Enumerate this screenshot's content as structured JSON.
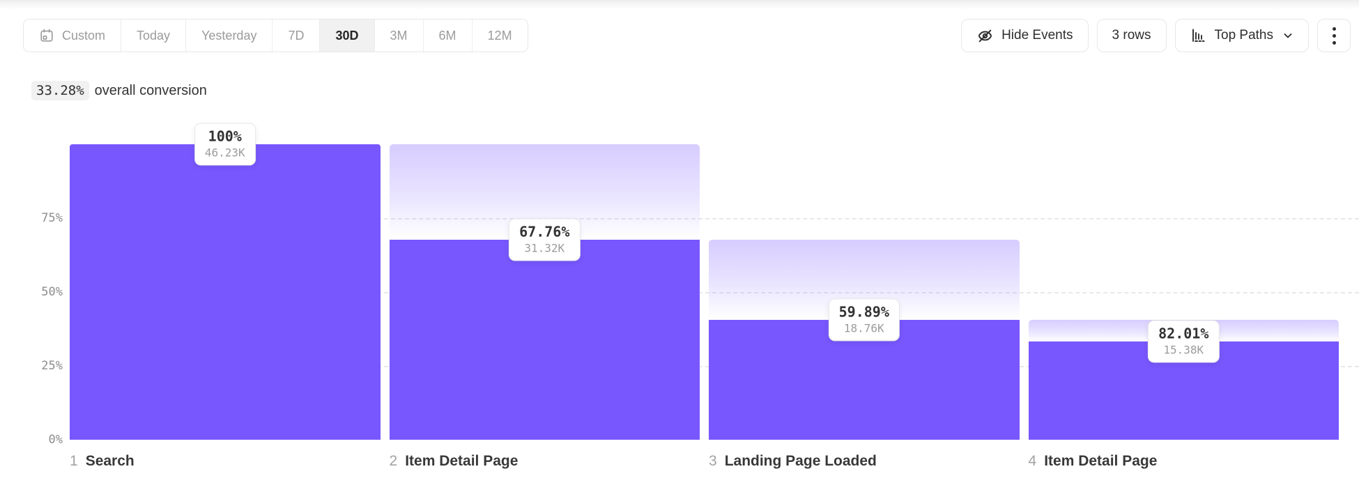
{
  "toolbar": {
    "date_ranges": [
      {
        "label": "Custom",
        "icon": "calendar",
        "active": false
      },
      {
        "label": "Today",
        "active": false
      },
      {
        "label": "Yesterday",
        "active": false
      },
      {
        "label": "7D",
        "active": false
      },
      {
        "label": "30D",
        "active": true
      },
      {
        "label": "3M",
        "active": false
      },
      {
        "label": "6M",
        "active": false
      },
      {
        "label": "12M",
        "active": false
      }
    ],
    "hide_events_label": "Hide Events",
    "rows_label": "3 rows",
    "top_paths_label": "Top Paths",
    "kebab_icon": "vertical-dots-menu"
  },
  "summary": {
    "overall_pct": "33.28%",
    "overall_text": "overall conversion"
  },
  "chart_data": {
    "type": "bar",
    "subtype": "funnel",
    "title": "33.28% overall conversion",
    "ylim": [
      0,
      100
    ],
    "grid": "dashed horizontal lines at 25, 50, 75",
    "legend": "none",
    "yticks": [
      {
        "label": "75%",
        "value": 75
      },
      {
        "label": "50%",
        "value": 50
      },
      {
        "label": "25%",
        "value": 25
      },
      {
        "label": "0%",
        "value": 0
      }
    ],
    "steps": [
      {
        "index": "1",
        "label": "Search",
        "conversion_pct": "100%",
        "conversion_value": 100,
        "count": "46.23K",
        "cumulative_pct": 100,
        "prev_cumulative_pct": 100
      },
      {
        "index": "2",
        "label": "Item Detail Page",
        "conversion_pct": "67.76%",
        "conversion_value": 67.76,
        "count": "31.32K",
        "cumulative_pct": 67.76,
        "prev_cumulative_pct": 100
      },
      {
        "index": "3",
        "label": "Landing Page Loaded",
        "conversion_pct": "59.89%",
        "conversion_value": 59.89,
        "count": "18.76K",
        "cumulative_pct": 40.58,
        "prev_cumulative_pct": 67.76
      },
      {
        "index": "4",
        "label": "Item Detail Page",
        "conversion_pct": "82.01%",
        "conversion_value": 82.01,
        "count": "15.38K",
        "cumulative_pct": 33.28,
        "prev_cumulative_pct": 40.58
      }
    ],
    "colors": {
      "bar": "#7857fe",
      "gradient_top": "rgba(121,88,254,0.30)",
      "gradient_bottom": "rgba(121,88,254,0.0)",
      "grid": "#e8e8e8"
    }
  }
}
